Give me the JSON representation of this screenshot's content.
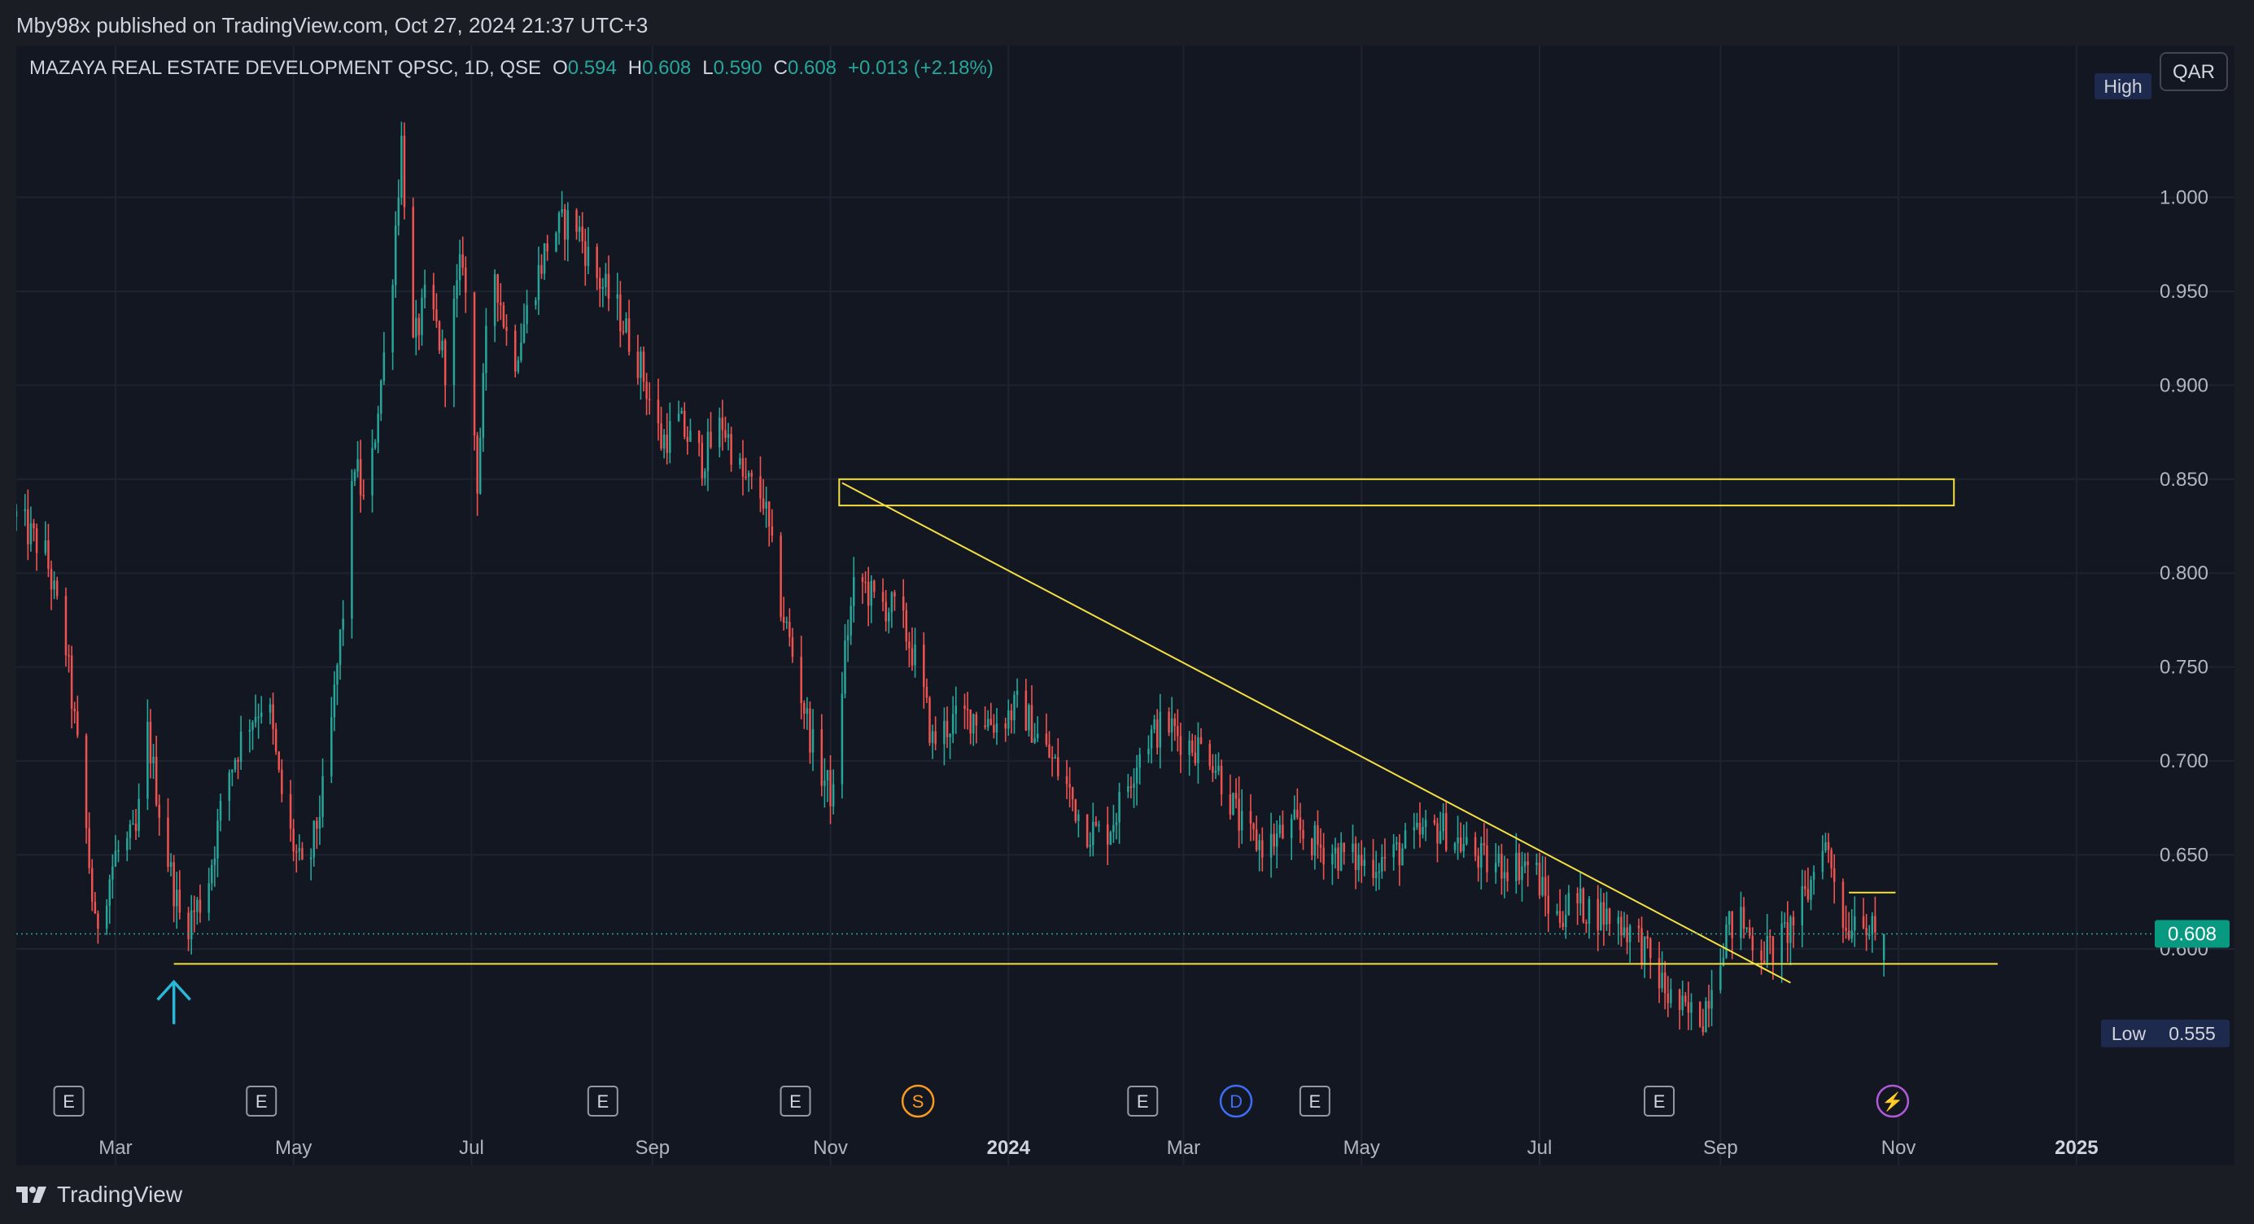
{
  "header": {
    "published_by": "Mby98x published on TradingView.com, Oct 27, 2024 21:37 UTC+3"
  },
  "legend": {
    "symbol": "MAZAYA REAL ESTATE DEVELOPMENT QPSC, 1D, QSE",
    "open_label": "O",
    "open": "0.594",
    "high_label": "H",
    "high": "0.608",
    "low_label": "L",
    "low": "0.590",
    "close_label": "C",
    "close": "0.608",
    "change": "+0.013 (+2.18%)"
  },
  "currency_button": "QAR",
  "footer": {
    "brand": "TradingView"
  },
  "colors": {
    "up": "#26a69a",
    "down": "#ef5350",
    "drawing": "#f5e042",
    "arrow": "#2bb8d8",
    "grid": "#1f2330",
    "last_price_bg": "#089981",
    "hi_lo_bg": "#1e2a4d"
  },
  "chart_data": {
    "type": "candlestick",
    "symbol": "MAZAYA REAL ESTATE DEVELOPMENT QPSC",
    "interval": "1D",
    "exchange": "QSE",
    "currency": "QAR",
    "y_ticks": [
      "0.600",
      "0.650",
      "0.700",
      "0.750",
      "0.800",
      "0.850",
      "0.900",
      "0.950",
      "1.000"
    ],
    "y_range": [
      0.548,
      1.06
    ],
    "x_range": [
      "2023-01-26",
      "2025-01-20"
    ],
    "x_ticks": [
      {
        "date": "2023-03-01",
        "label": "Mar",
        "bold": false
      },
      {
        "date": "2023-05-01",
        "label": "May",
        "bold": false
      },
      {
        "date": "2023-07-01",
        "label": "Jul",
        "bold": false
      },
      {
        "date": "2023-09-01",
        "label": "Sep",
        "bold": false
      },
      {
        "date": "2023-11-01",
        "label": "Nov",
        "bold": false
      },
      {
        "date": "2024-01-01",
        "label": "2024",
        "bold": true
      },
      {
        "date": "2024-03-01",
        "label": "Mar",
        "bold": false
      },
      {
        "date": "2024-05-01",
        "label": "May",
        "bold": false
      },
      {
        "date": "2024-07-01",
        "label": "Jul",
        "bold": false
      },
      {
        "date": "2024-09-01",
        "label": "Sep",
        "bold": false
      },
      {
        "date": "2024-11-01",
        "label": "Nov",
        "bold": false
      },
      {
        "date": "2025-01-01",
        "label": "2025",
        "bold": true
      }
    ],
    "price_path": [
      [
        "2023-01-26",
        0.83
      ],
      [
        "2023-02-05",
        0.81
      ],
      [
        "2023-02-12",
        0.76
      ],
      [
        "2023-02-18",
        0.68
      ],
      [
        "2023-02-22",
        0.61
      ],
      [
        "2023-03-01",
        0.65
      ],
      [
        "2023-03-08",
        0.66
      ],
      [
        "2023-03-12",
        0.715
      ],
      [
        "2023-03-18",
        0.655
      ],
      [
        "2023-03-24",
        0.61
      ],
      [
        "2023-04-01",
        0.63
      ],
      [
        "2023-04-08",
        0.69
      ],
      [
        "2023-04-15",
        0.72
      ],
      [
        "2023-04-22",
        0.735
      ],
      [
        "2023-04-26",
        0.69
      ],
      [
        "2023-04-30",
        0.66
      ],
      [
        "2023-05-05",
        0.635
      ],
      [
        "2023-05-12",
        0.69
      ],
      [
        "2023-05-18",
        0.78
      ],
      [
        "2023-05-22",
        0.86
      ],
      [
        "2023-05-26",
        0.83
      ],
      [
        "2023-05-30",
        0.89
      ],
      [
        "2023-06-03",
        0.94
      ],
      [
        "2023-06-07",
        1.03
      ],
      [
        "2023-06-11",
        0.92
      ],
      [
        "2023-06-16",
        0.95
      ],
      [
        "2023-06-22",
        0.91
      ],
      [
        "2023-06-28",
        0.97
      ],
      [
        "2023-07-03",
        0.85
      ],
      [
        "2023-07-08",
        0.97
      ],
      [
        "2023-07-15",
        0.91
      ],
      [
        "2023-07-22",
        0.95
      ],
      [
        "2023-07-28",
        0.98
      ],
      [
        "2023-08-05",
        0.99
      ],
      [
        "2023-08-12",
        0.96
      ],
      [
        "2023-08-20",
        0.94
      ],
      [
        "2023-08-28",
        0.91
      ],
      [
        "2023-09-04",
        0.87
      ],
      [
        "2023-09-10",
        0.88
      ],
      [
        "2023-09-18",
        0.86
      ],
      [
        "2023-09-25",
        0.88
      ],
      [
        "2023-10-02",
        0.85
      ],
      [
        "2023-10-09",
        0.84
      ],
      [
        "2023-10-14",
        0.79
      ],
      [
        "2023-10-20",
        0.75
      ],
      [
        "2023-10-27",
        0.7
      ],
      [
        "2023-11-02",
        0.68
      ],
      [
        "2023-11-06",
        0.76
      ],
      [
        "2023-11-10",
        0.8
      ],
      [
        "2023-11-16",
        0.785
      ],
      [
        "2023-11-24",
        0.78
      ],
      [
        "2023-12-01",
        0.75
      ],
      [
        "2023-12-06",
        0.71
      ],
      [
        "2023-12-12",
        0.72
      ],
      [
        "2023-12-20",
        0.725
      ],
      [
        "2023-12-28",
        0.72
      ],
      [
        "2024-01-05",
        0.73
      ],
      [
        "2024-01-12",
        0.71
      ],
      [
        "2024-01-20",
        0.69
      ],
      [
        "2024-01-27",
        0.665
      ],
      [
        "2024-02-03",
        0.66
      ],
      [
        "2024-02-09",
        0.68
      ],
      [
        "2024-02-16",
        0.71
      ],
      [
        "2024-02-24",
        0.72
      ],
      [
        "2024-03-02",
        0.71
      ],
      [
        "2024-03-10",
        0.705
      ],
      [
        "2024-03-17",
        0.68
      ],
      [
        "2024-03-22",
        0.66
      ],
      [
        "2024-03-29",
        0.655
      ],
      [
        "2024-04-08",
        0.665
      ],
      [
        "2024-04-16",
        0.655
      ],
      [
        "2024-04-24",
        0.65
      ],
      [
        "2024-05-03",
        0.645
      ],
      [
        "2024-05-12",
        0.65
      ],
      [
        "2024-05-21",
        0.66
      ],
      [
        "2024-05-28",
        0.665
      ],
      [
        "2024-06-05",
        0.655
      ],
      [
        "2024-06-13",
        0.645
      ],
      [
        "2024-06-22",
        0.645
      ],
      [
        "2024-06-29",
        0.645
      ],
      [
        "2024-07-01",
        0.635
      ],
      [
        "2024-07-06",
        0.615
      ],
      [
        "2024-07-12",
        0.625
      ],
      [
        "2024-07-20",
        0.62
      ],
      [
        "2024-07-28",
        0.615
      ],
      [
        "2024-08-04",
        0.605
      ],
      [
        "2024-08-09",
        0.59
      ],
      [
        "2024-08-14",
        0.575
      ],
      [
        "2024-08-20",
        0.565
      ],
      [
        "2024-08-26",
        0.565
      ],
      [
        "2024-08-30",
        0.59
      ],
      [
        "2024-09-03",
        0.61
      ],
      [
        "2024-09-08",
        0.615
      ],
      [
        "2024-09-14",
        0.6
      ],
      [
        "2024-09-20",
        0.6
      ],
      [
        "2024-09-26",
        0.615
      ],
      [
        "2024-10-01",
        0.63
      ],
      [
        "2024-10-06",
        0.66
      ],
      [
        "2024-10-10",
        0.64
      ],
      [
        "2024-10-14",
        0.61
      ],
      [
        "2024-10-19",
        0.625
      ],
      [
        "2024-10-22",
        0.61
      ],
      [
        "2024-10-26",
        0.6
      ],
      [
        "2024-10-27",
        0.608
      ]
    ],
    "last_price": "0.608",
    "high_marker": {
      "label": "High",
      "value": "1.040"
    },
    "low_marker": {
      "label": "Low",
      "value": "0.555"
    },
    "drawings": [
      {
        "kind": "horizontal-line",
        "date_from": "2023-03-21",
        "date_to": "2024-12-05",
        "price": 0.592
      },
      {
        "kind": "trend-line",
        "date_from": "2023-11-05",
        "price_from": 0.848,
        "date_to": "2024-09-25",
        "price_to": 0.582
      },
      {
        "kind": "rectangle",
        "date_from": "2023-11-04",
        "date_to": "2024-11-20",
        "price_from": 0.836,
        "price_to": 0.85
      },
      {
        "kind": "short-line",
        "date_from": "2024-10-15",
        "date_to": "2024-10-31",
        "price": 0.63
      }
    ],
    "arrow_marker": {
      "date": "2023-03-21",
      "direction": "up"
    },
    "events": [
      {
        "date": "2023-02-13",
        "letter": "E",
        "kind": "earnings"
      },
      {
        "date": "2023-04-20",
        "letter": "E",
        "kind": "earnings"
      },
      {
        "date": "2023-08-15",
        "letter": "E",
        "kind": "earnings"
      },
      {
        "date": "2023-10-20",
        "letter": "E",
        "kind": "earnings"
      },
      {
        "date": "2023-12-01",
        "letter": "S",
        "kind": "split"
      },
      {
        "date": "2024-02-16",
        "letter": "E",
        "kind": "earnings"
      },
      {
        "date": "2024-03-19",
        "letter": "D",
        "kind": "dividend"
      },
      {
        "date": "2024-04-15",
        "letter": "E",
        "kind": "earnings"
      },
      {
        "date": "2024-08-11",
        "letter": "E",
        "kind": "earnings"
      },
      {
        "date": "2024-10-30",
        "letter": "⚡",
        "kind": "news"
      }
    ]
  }
}
